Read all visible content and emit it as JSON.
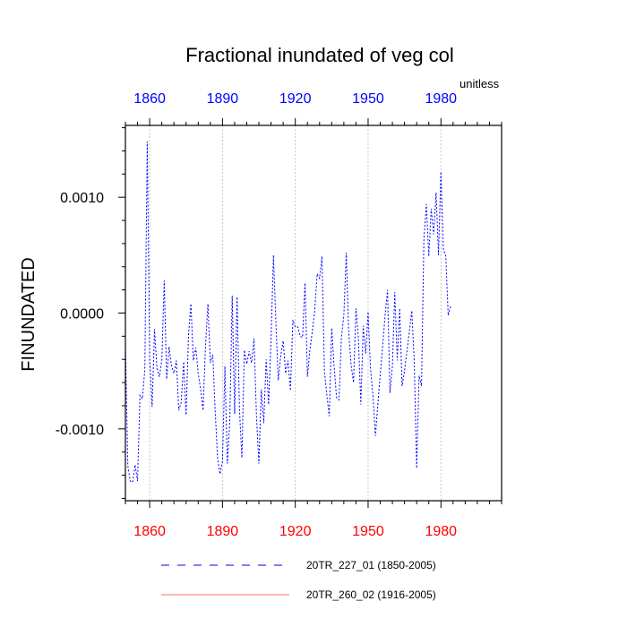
{
  "chart_data": {
    "type": "line",
    "title": "Fractional inundated of veg col",
    "units_label": "unitless",
    "ylabel": "FINUNDATED",
    "xlabel": "",
    "xlim": [
      1850,
      2005
    ],
    "ylim": [
      -0.00162,
      0.00162
    ],
    "x_ticks": [
      1860,
      1890,
      1920,
      1950,
      1980
    ],
    "x_tick_labels": [
      "1860",
      "1890",
      "1920",
      "1950",
      "1980"
    ],
    "y_ticks": [
      0.001,
      0.0,
      -0.001
    ],
    "y_tick_labels": [
      "0.0010",
      "0.0000",
      "-0.0010"
    ],
    "top_axis_color": "#0000ff",
    "bottom_axis_color": "#ff0000",
    "vertical_grid": true,
    "legend_position": "bottom",
    "series": [
      {
        "name": "20TR_227_01 (1850-2005)",
        "color": "#0000ff",
        "style": "dashed",
        "x_start": 1850,
        "values": [
          -0.00027,
          -0.00132,
          -0.00145,
          -0.00146,
          -0.00131,
          -0.00145,
          -0.00071,
          -0.00074,
          -0.00049,
          0.00148,
          -0.00038,
          -0.00081,
          -0.00014,
          -0.00048,
          -0.00055,
          -0.00041,
          0.00028,
          -0.00057,
          -0.00029,
          -0.00046,
          -0.00052,
          -0.00041,
          -0.00084,
          -0.00077,
          -0.00042,
          -0.00088,
          -0.00019,
          8e-05,
          -0.00041,
          -0.0003,
          -0.00052,
          -0.00066,
          -0.00084,
          -0.00028,
          8e-05,
          -0.00043,
          -0.00036,
          -0.00085,
          -0.00126,
          -0.00139,
          -0.00128,
          -0.00046,
          -0.0013,
          -0.00094,
          0.00015,
          -0.00087,
          0.00014,
          -0.00083,
          -0.00125,
          -0.00032,
          -0.00044,
          -0.00033,
          -0.00043,
          -0.00022,
          -0.00089,
          -0.0013,
          -0.00066,
          -0.00095,
          -0.0004,
          -0.00079,
          -0.00023,
          0.0005,
          -8e-05,
          -0.00058,
          -0.00037,
          -0.00024,
          -0.00052,
          -0.00041,
          -0.00067,
          -6e-05,
          -0.00012,
          -0.00012,
          -0.0002,
          -0.00021,
          0.00026,
          -0.00055,
          -0.00032,
          -0.00016,
          2e-05,
          0.00034,
          0.0003,
          0.00049,
          -0.0005,
          -0.00071,
          -0.00089,
          -0.00013,
          -0.00046,
          -0.00073,
          -0.00075,
          -0.00021,
          -2e-05,
          0.00052,
          -0.00017,
          -0.00045,
          -0.0006,
          4e-05,
          -0.00022,
          -0.00079,
          -0.00011,
          -0.00035,
          1e-05,
          -0.00049,
          -0.00071,
          -0.00106,
          -0.00079,
          -0.00053,
          -0.00028,
          -2e-05,
          0.0002,
          -0.00069,
          -0.00046,
          0.00018,
          -0.00041,
          4e-05,
          -0.00063,
          -0.0005,
          -0.00033,
          -0.00016,
          2e-05,
          -0.00041,
          -0.00134,
          -0.00054,
          -0.00063,
          0.00065,
          0.00094,
          0.00049,
          0.0009,
          0.00068,
          0.00104,
          0.0005,
          0.00122,
          0.00055,
          0.00049,
          -2e-05,
          6e-05
        ]
      },
      {
        "name": "20TR_260_02 (1916-2005)",
        "color": "#ff6b6b",
        "style": "solid",
        "values": []
      }
    ]
  }
}
